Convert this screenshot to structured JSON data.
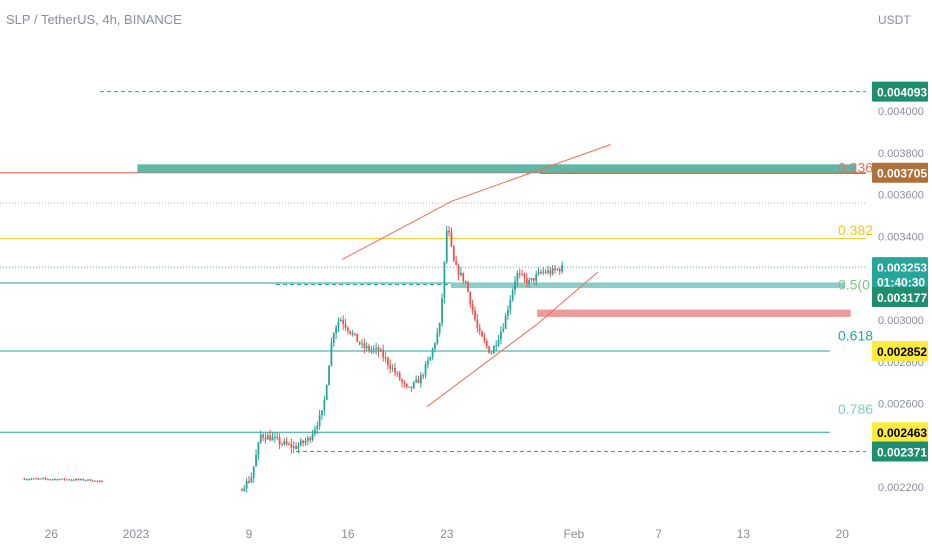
{
  "header": {
    "title": "SLP / TetherUS, 4h, BINANCE"
  },
  "chart_data": {
    "type": "candlestick",
    "title": "SLP / TetherUS, 4h, BINANCE",
    "currency": "USDT",
    "ylim": [
      0.00211,
      0.00434
    ],
    "y_ticks": [
      "0.004000",
      "0.003800",
      "0.003600",
      "0.003400",
      "0.003000",
      "0.002800",
      "0.002600",
      "0.002200"
    ],
    "x_ticks": [
      {
        "label": "26",
        "day": -6
      },
      {
        "label": "2023",
        "day": 0
      },
      {
        "label": "9",
        "day": 8
      },
      {
        "label": "16",
        "day": 15
      },
      {
        "label": "23",
        "day": 22
      },
      {
        "label": "Feb",
        "day": 31
      },
      {
        "label": "7",
        "day": 37
      },
      {
        "label": "13",
        "day": 43
      },
      {
        "label": "20",
        "day": 50
      }
    ],
    "price_path": [
      [
        -7.9,
        0.00224
      ],
      [
        -5.0,
        0.002238
      ],
      [
        -3.0,
        0.002234
      ],
      [
        -2.3,
        0.002225
      ],
      [
        7.5,
        0.00219
      ],
      [
        8.3,
        0.00224
      ],
      [
        9.0,
        0.00245
      ],
      [
        9.8,
        0.002435
      ],
      [
        10.5,
        0.00241
      ],
      [
        11.4,
        0.00239
      ],
      [
        12.4,
        0.00243
      ],
      [
        13.4,
        0.00256
      ],
      [
        14.1,
        0.00294
      ],
      [
        14.6,
        0.00301
      ],
      [
        15.4,
        0.00294
      ],
      [
        16.2,
        0.00287
      ],
      [
        17.4,
        0.00285
      ],
      [
        18.4,
        0.00276
      ],
      [
        19.4,
        0.00266
      ],
      [
        20.3,
        0.00272
      ],
      [
        21.0,
        0.00282
      ],
      [
        21.7,
        0.00298
      ],
      [
        22.2,
        0.00346
      ],
      [
        22.7,
        0.00326
      ],
      [
        23.5,
        0.00318
      ],
      [
        24.4,
        0.00294
      ],
      [
        25.3,
        0.00284
      ],
      [
        26.2,
        0.00298
      ],
      [
        27.1,
        0.00322
      ],
      [
        28.0,
        0.00318
      ],
      [
        28.9,
        0.00323
      ],
      [
        29.6,
        0.00323
      ],
      [
        30.3,
        0.00325
      ]
    ],
    "horizontal_levels": [
      {
        "price": 0.004093,
        "style": "dashed",
        "color": "#26a69a"
      },
      {
        "price": 0.003705,
        "style": "solid",
        "color": "#ef5350"
      },
      {
        "price": 0.00356,
        "style": "dotted",
        "color": "#9e9e9e"
      },
      {
        "price": 0.00339,
        "style": "solid",
        "color": "#f7d038"
      },
      {
        "price": 0.003253,
        "style": "dotted",
        "color": "#26a69a"
      },
      {
        "price": 0.00317,
        "style": "dashed",
        "color": "#26a69a"
      },
      {
        "price": 0.003177,
        "style": "solid",
        "color": "#26a69a"
      },
      {
        "price": 0.002852,
        "style": "solid",
        "color": "#26a69a"
      },
      {
        "price": 0.002463,
        "style": "solid",
        "color": "#26a69a"
      },
      {
        "price": 0.002371,
        "style": "dashed",
        "color": "#26a69a"
      }
    ],
    "fib_levels": [
      {
        "label": "0.236",
        "price": 0.00373,
        "color": "#ef6c5a"
      },
      {
        "label": "0.382",
        "price": 0.00343,
        "color": "#f7c51d"
      },
      {
        "label": "0.5(0",
        "price": 0.00317,
        "color": "#81c784"
      },
      {
        "label": "0.618",
        "price": 0.002925,
        "color": "#26a69a"
      },
      {
        "label": "0.786",
        "price": 0.002575,
        "color": "#7ecfc4"
      }
    ],
    "price_labels": [
      {
        "text": "0.004093",
        "price": 0.004093,
        "bg": "#1e8e6e",
        "fg": "#ffffff"
      },
      {
        "text": "0.003705",
        "price": 0.003705,
        "bg": "#b0703a",
        "fg": "#ffffff"
      },
      {
        "text": "0.003253",
        "price": 0.003253,
        "bg": "#26a69a",
        "fg": "#ffffff"
      },
      {
        "text": "01:40:30",
        "price": 0.003185,
        "bg": "#26a69a",
        "fg": "#ffffff"
      },
      {
        "text": "0.003177",
        "price": 0.00311,
        "bg": "#1e8e6e",
        "fg": "#ffffff"
      },
      {
        "text": "0.002852",
        "price": 0.002852,
        "bg": "#ffeb3b",
        "fg": "#000000"
      },
      {
        "text": "0.002463",
        "price": 0.002463,
        "bg": "#ffeb3b",
        "fg": "#000000"
      },
      {
        "text": "0.002371",
        "price": 0.002371,
        "bg": "#1e8e6e",
        "fg": "#ffffff"
      }
    ],
    "zones": [
      {
        "name": "resistance-zone",
        "price_top": 0.003745,
        "price_bottom": 0.003705,
        "day_start": 0.1,
        "day_end": 51.0,
        "color": "#5fb8a6"
      },
      {
        "name": "support-zone",
        "price_top": 0.00318,
        "price_bottom": 0.003153,
        "day_start": 22.3,
        "day_end": 50.2,
        "color": "#8bcdc7"
      },
      {
        "name": "demand-zone",
        "price_top": 0.00305,
        "price_bottom": 0.003015,
        "day_start": 28.4,
        "day_end": 50.6,
        "color": "#ef9a9a"
      }
    ],
    "trend_channel": {
      "upper": [
        [
          14.6,
          0.00329
        ],
        [
          22.4,
          0.00357
        ],
        [
          33.6,
          0.00384
        ]
      ],
      "lower": [
        [
          20.6,
          0.002585
        ],
        [
          28.4,
          0.00298
        ],
        [
          32.7,
          0.00323
        ]
      ],
      "color": "#ef6c5a"
    }
  }
}
